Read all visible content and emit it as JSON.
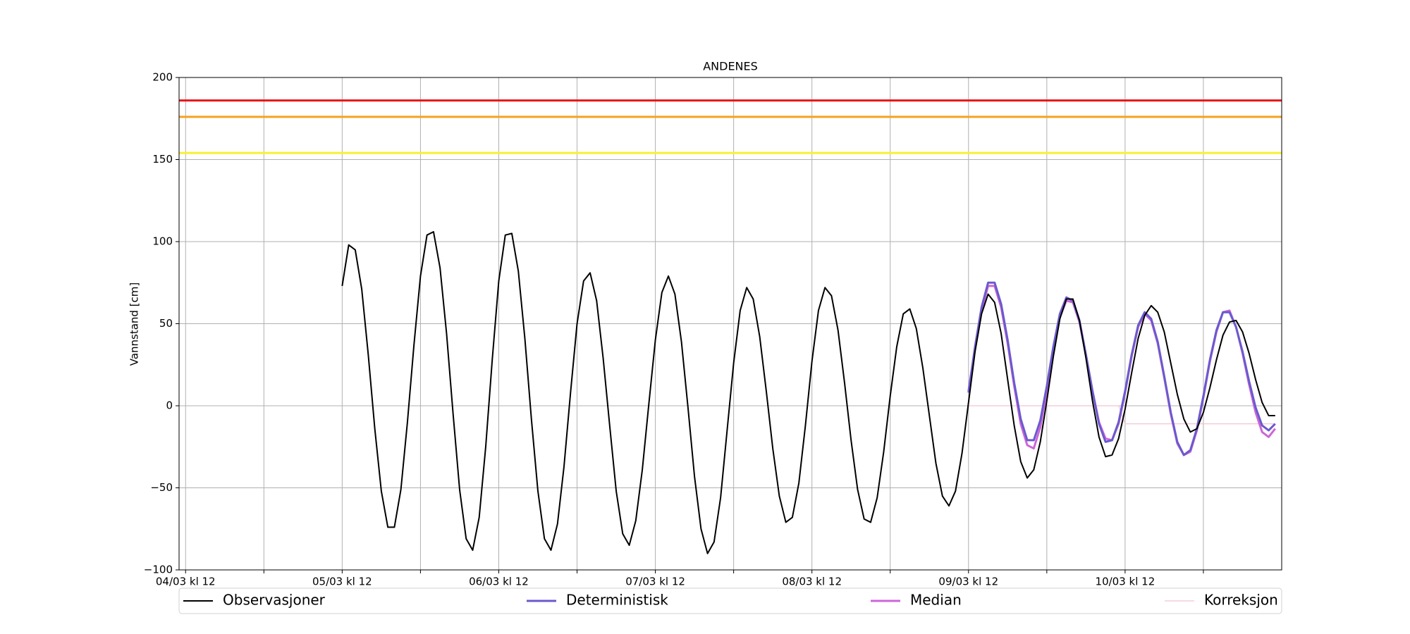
{
  "chart_data": {
    "type": "line",
    "title": "ANDENES",
    "ylabel": "Vannstand [cm]",
    "x": [
      "05/03 kl 12",
      "05/03 kl 13",
      "05/03 kl 14",
      "05/03 kl 15",
      "05/03 kl 16",
      "05/03 kl 17",
      "05/03 kl 18",
      "05/03 kl 19",
      "05/03 kl 20",
      "05/03 kl 21",
      "05/03 kl 22",
      "05/03 kl 23",
      "06/03 kl 00",
      "06/03 kl 01",
      "06/03 kl 02",
      "06/03 kl 03",
      "06/03 kl 04",
      "06/03 kl 05",
      "06/03 kl 06",
      "06/03 kl 07",
      "06/03 kl 08",
      "06/03 kl 09",
      "06/03 kl 10",
      "06/03 kl 11",
      "06/03 kl 12",
      "06/03 kl 13",
      "06/03 kl 14",
      "06/03 kl 15",
      "06/03 kl 16",
      "06/03 kl 17",
      "06/03 kl 18",
      "06/03 kl 19",
      "06/03 kl 20",
      "06/03 kl 21",
      "06/03 kl 22",
      "06/03 kl 23",
      "07/03 kl 00",
      "07/03 kl 01",
      "07/03 kl 02",
      "07/03 kl 03",
      "07/03 kl 04",
      "07/03 kl 05",
      "07/03 kl 06",
      "07/03 kl 07",
      "07/03 kl 08",
      "07/03 kl 09",
      "07/03 kl 10",
      "07/03 kl 11",
      "07/03 kl 12",
      "07/03 kl 13",
      "07/03 kl 14",
      "07/03 kl 15",
      "07/03 kl 16",
      "07/03 kl 17",
      "07/03 kl 18",
      "07/03 kl 19",
      "07/03 kl 20",
      "07/03 kl 21",
      "07/03 kl 22",
      "07/03 kl 23",
      "08/03 kl 00",
      "08/03 kl 01",
      "08/03 kl 02",
      "08/03 kl 03",
      "08/03 kl 04",
      "08/03 kl 05",
      "08/03 kl 06",
      "08/03 kl 07",
      "08/03 kl 08",
      "08/03 kl 09",
      "08/03 kl 10",
      "08/03 kl 11",
      "08/03 kl 12",
      "08/03 kl 13",
      "08/03 kl 14",
      "08/03 kl 15",
      "08/03 kl 16",
      "08/03 kl 17",
      "08/03 kl 18",
      "08/03 kl 19",
      "08/03 kl 20",
      "08/03 kl 21",
      "08/03 kl 22",
      "08/03 kl 23",
      "09/03 kl 00",
      "09/03 kl 01",
      "09/03 kl 02",
      "09/03 kl 03",
      "09/03 kl 04",
      "09/03 kl 05",
      "09/03 kl 06",
      "09/03 kl 07",
      "09/03 kl 08",
      "09/03 kl 09",
      "09/03 kl 10",
      "09/03 kl 11",
      "09/03 kl 12",
      "09/03 kl 13",
      "09/03 kl 14",
      "09/03 kl 15",
      "09/03 kl 16",
      "09/03 kl 17",
      "09/03 kl 18",
      "09/03 kl 19",
      "09/03 kl 20",
      "09/03 kl 21",
      "09/03 kl 22",
      "09/03 kl 23",
      "10/03 kl 00",
      "10/03 kl 01",
      "10/03 kl 02",
      "10/03 kl 03",
      "10/03 kl 04",
      "10/03 kl 05",
      "10/03 kl 06",
      "10/03 kl 07",
      "10/03 kl 08",
      "10/03 kl 09",
      "10/03 kl 10",
      "10/03 kl 11",
      "10/03 kl 12",
      "10/03 kl 13",
      "10/03 kl 14",
      "10/03 kl 15",
      "10/03 kl 16",
      "10/03 kl 17",
      "10/03 kl 18",
      "10/03 kl 19",
      "10/03 kl 20",
      "10/03 kl 21",
      "10/03 kl 22",
      "10/03 kl 23",
      "11/03 kl 00",
      "11/03 kl 01",
      "11/03 kl 02",
      "11/03 kl 03",
      "11/03 kl 04",
      "11/03 kl 05",
      "11/03 kl 06",
      "11/03 kl 07",
      "11/03 kl 08",
      "11/03 kl 09",
      "11/03 kl 10",
      "11/03 kl 11"
    ],
    "series": [
      {
        "name": "Observasjoner",
        "color": "#000000",
        "width": 2,
        "values": [
          73,
          98,
          95,
          71,
          31,
          -14,
          -52,
          -74,
          -74,
          -51,
          -10,
          37,
          79,
          104,
          106,
          84,
          44,
          -5,
          -51,
          -81,
          -88,
          -68,
          -25,
          28,
          76,
          104,
          105,
          82,
          41,
          -8,
          -52,
          -81,
          -88,
          -72,
          -37,
          8,
          50,
          76,
          81,
          64,
          29,
          -12,
          -52,
          -78,
          -85,
          -70,
          -39,
          1,
          40,
          69,
          79,
          68,
          39,
          -1,
          -43,
          -75,
          -90,
          -83,
          -56,
          -15,
          26,
          58,
          72,
          65,
          42,
          9,
          -26,
          -55,
          -71,
          -68,
          -47,
          -12,
          27,
          58,
          72,
          67,
          46,
          14,
          -21,
          -51,
          -69,
          -71,
          -56,
          -28,
          6,
          36,
          56,
          59,
          47,
          23,
          -6,
          -35,
          -55,
          -61,
          -52,
          -29,
          2,
          33,
          56,
          68,
          63,
          44,
          16,
          -12,
          -34,
          -44,
          -39,
          -22,
          3,
          30,
          53,
          65,
          65,
          52,
          29,
          3,
          -19,
          -31,
          -30,
          -20,
          -2,
          20,
          41,
          55,
          61,
          57,
          45,
          26,
          7,
          -8,
          -16,
          -14,
          -4,
          11,
          28,
          43,
          51,
          52,
          45,
          32,
          16,
          2,
          -6,
          -6
        ]
      },
      {
        "name": "Deterministisk",
        "color": "#6a5acd",
        "width": 3,
        "values": [
          null,
          null,
          null,
          null,
          null,
          null,
          null,
          null,
          null,
          null,
          null,
          null,
          null,
          null,
          null,
          null,
          null,
          null,
          null,
          null,
          null,
          null,
          null,
          null,
          null,
          null,
          null,
          null,
          null,
          null,
          null,
          null,
          null,
          null,
          null,
          null,
          null,
          null,
          null,
          null,
          null,
          null,
          null,
          null,
          null,
          null,
          null,
          null,
          null,
          null,
          null,
          null,
          null,
          null,
          null,
          null,
          null,
          null,
          null,
          null,
          null,
          null,
          null,
          null,
          null,
          null,
          null,
          null,
          null,
          null,
          null,
          null,
          null,
          null,
          null,
          null,
          null,
          null,
          null,
          null,
          null,
          null,
          null,
          null,
          null,
          null,
          null,
          null,
          null,
          null,
          null,
          null,
          null,
          null,
          null,
          null,
          8,
          36,
          60,
          75,
          75,
          62,
          40,
          14,
          -8,
          -21,
          -21,
          -9,
          12,
          36,
          56,
          66,
          64,
          52,
          31,
          9,
          -11,
          -22,
          -21,
          -10,
          9,
          31,
          49,
          57,
          53,
          39,
          18,
          -4,
          -22,
          -30,
          -27,
          -14,
          6,
          28,
          46,
          57,
          57,
          48,
          33,
          15,
          -1,
          -12,
          -15,
          -11
        ]
      },
      {
        "name": "Median",
        "color": "#cc66d8",
        "width": 3,
        "values": [
          null,
          null,
          null,
          null,
          null,
          null,
          null,
          null,
          null,
          null,
          null,
          null,
          null,
          null,
          null,
          null,
          null,
          null,
          null,
          null,
          null,
          null,
          null,
          null,
          null,
          null,
          null,
          null,
          null,
          null,
          null,
          null,
          null,
          null,
          null,
          null,
          null,
          null,
          null,
          null,
          null,
          null,
          null,
          null,
          null,
          null,
          null,
          null,
          null,
          null,
          null,
          null,
          null,
          null,
          null,
          null,
          null,
          null,
          null,
          null,
          null,
          null,
          null,
          null,
          null,
          null,
          null,
          null,
          null,
          null,
          null,
          null,
          null,
          null,
          null,
          null,
          null,
          null,
          null,
          null,
          null,
          null,
          null,
          null,
          null,
          null,
          null,
          null,
          null,
          null,
          null,
          null,
          null,
          null,
          null,
          null,
          9,
          35,
          58,
          73,
          73,
          60,
          38,
          12,
          -11,
          -24,
          -26,
          -13,
          9,
          33,
          54,
          64,
          63,
          51,
          31,
          9,
          -10,
          -20,
          -21,
          -11,
          8,
          30,
          48,
          56,
          52,
          38,
          17,
          -5,
          -23,
          -30,
          -28,
          -15,
          5,
          27,
          45,
          57,
          58,
          48,
          32,
          13,
          -4,
          -16,
          -19,
          -14
        ]
      },
      {
        "name": "Korreksjon",
        "color": "#f2c4d0",
        "width": 1.2,
        "values": [
          null,
          null,
          null,
          null,
          null,
          null,
          null,
          null,
          null,
          null,
          null,
          null,
          null,
          null,
          null,
          null,
          null,
          null,
          null,
          null,
          null,
          null,
          null,
          null,
          null,
          null,
          null,
          null,
          null,
          null,
          null,
          null,
          null,
          null,
          null,
          null,
          null,
          null,
          null,
          null,
          null,
          null,
          null,
          null,
          null,
          null,
          null,
          null,
          null,
          null,
          null,
          null,
          null,
          null,
          null,
          null,
          null,
          null,
          null,
          null,
          null,
          null,
          null,
          null,
          null,
          null,
          null,
          null,
          null,
          null,
          null,
          null,
          null,
          null,
          null,
          null,
          null,
          null,
          null,
          null,
          null,
          null,
          null,
          null,
          null,
          null,
          null,
          null,
          null,
          null,
          null,
          null,
          null,
          null,
          null,
          null,
          0,
          0,
          0,
          0,
          0,
          0,
          0,
          0,
          0,
          0,
          0,
          0,
          0,
          0,
          0,
          0,
          0,
          0,
          0,
          0,
          0,
          0,
          0,
          0,
          -11,
          -11,
          -11,
          -11,
          -11,
          -11,
          -11,
          -11,
          -11,
          -11,
          -11,
          -11,
          -11,
          -11,
          -11,
          -11,
          -11,
          -11,
          -11,
          -11,
          -11,
          -11,
          -11,
          -11
        ]
      }
    ],
    "threshold_lines": [
      {
        "value": 186,
        "color": "#e8141b"
      },
      {
        "value": 176,
        "color": "#f5a31e"
      },
      {
        "value": 154,
        "color": "#f8f032"
      }
    ],
    "xlim": [
      "04/03 kl 11",
      "11/03 kl 12"
    ],
    "xticks": [
      "04/03 kl 12",
      "05/03 kl 12",
      "06/03 kl 12",
      "07/03 kl 12",
      "08/03 kl 12",
      "09/03 kl 12",
      "10/03 kl 12"
    ],
    "xminorticks": [
      "05/03 kl 00",
      "06/03 kl 00",
      "07/03 kl 00",
      "08/03 kl 00",
      "09/03 kl 00",
      "10/03 kl 00",
      "11/03 kl 00"
    ],
    "ylim": [
      -100,
      200
    ],
    "yticks": [
      {
        "value": -100,
        "label": "−100"
      },
      {
        "value": -50,
        "label": "−50"
      },
      0,
      50,
      100,
      150,
      200
    ],
    "grid": true,
    "legend": "bottom"
  }
}
